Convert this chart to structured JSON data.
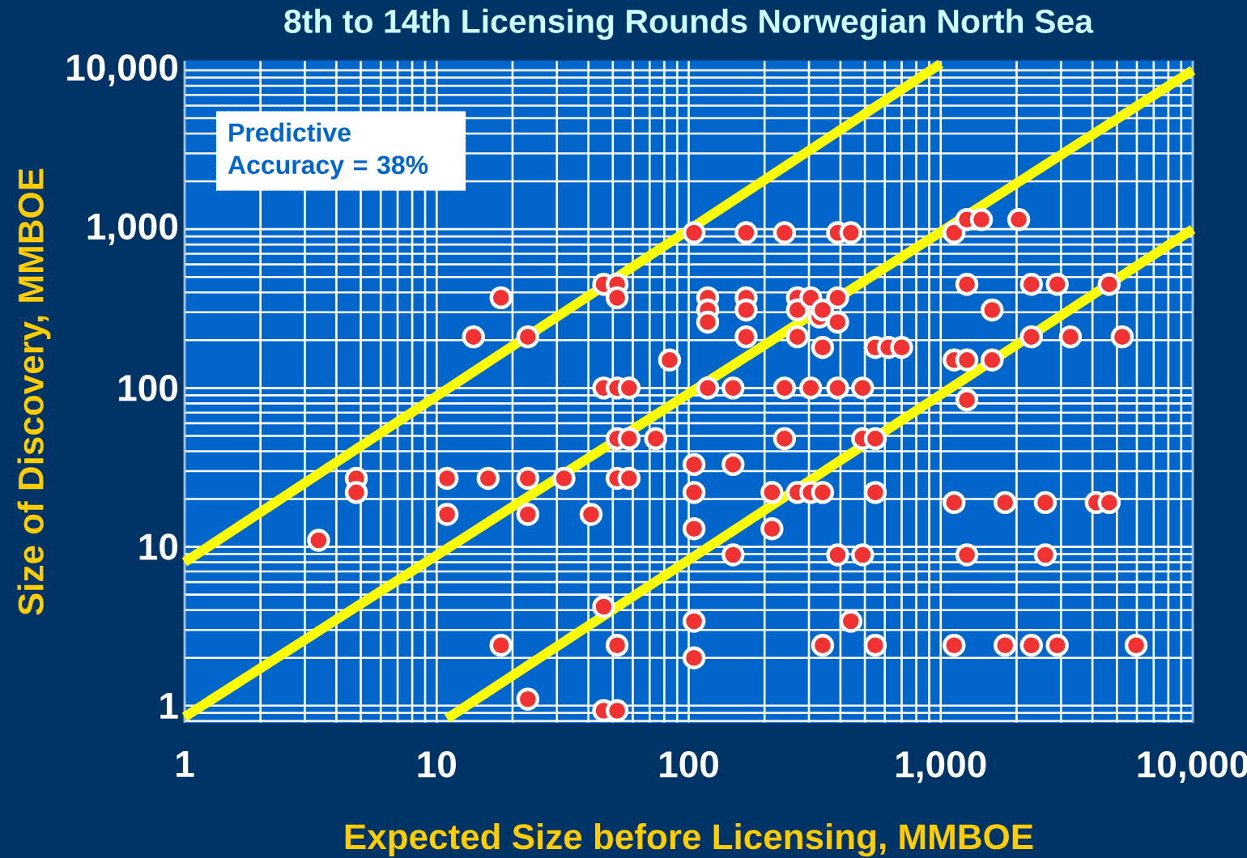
{
  "chart_data": {
    "type": "scatter",
    "title": "8th to 14th Licensing Rounds Norwegian North Sea",
    "xlabel": "Expected Size before Licensing, MMBOE",
    "ylabel": "Size of Discovery, MMBOE",
    "log": "xy",
    "grid": true,
    "xlim": [
      1,
      10000
    ],
    "ylim": [
      0.78,
      11500
    ],
    "xticks": [
      1,
      10,
      100,
      {
        "value": 1000,
        "label": "1,000"
      },
      {
        "value": 10000,
        "label": "10,000"
      }
    ],
    "yticks": [
      1,
      10,
      100,
      {
        "value": 1000,
        "label": "1,000"
      },
      {
        "value": 10000,
        "label": "10,000"
      }
    ],
    "annotations": [
      "Predictive Accuracy = 38%"
    ],
    "series": [
      {
        "color": "#f03232",
        "marker": "circle",
        "x": [
          3.4,
          4.8,
          4.8,
          11,
          11,
          14,
          16,
          18,
          18,
          23,
          23,
          23,
          23,
          32,
          41,
          46,
          46,
          46,
          46,
          52,
          52,
          52,
          52,
          52,
          52,
          52,
          58,
          58,
          58,
          74,
          84,
          105,
          105,
          105,
          105,
          105,
          105,
          119,
          119,
          119,
          119,
          150,
          150,
          150,
          169,
          169,
          169,
          169,
          214,
          214,
          240,
          240,
          240,
          270,
          270,
          270,
          270,
          305,
          305,
          305,
          330,
          340,
          340,
          340,
          340,
          390,
          390,
          390,
          390,
          390,
          440,
          440,
          490,
          490,
          490,
          550,
          550,
          550,
          550,
          620,
          700,
          1130,
          1130,
          1130,
          1130,
          1270,
          1270,
          1270,
          1270,
          1270,
          1450,
          1600,
          1600,
          1800,
          1800,
          2040,
          2290,
          2290,
          2290,
          2600,
          2600,
          2900,
          2900,
          3270,
          4140,
          4660,
          4660,
          5250,
          5960
        ],
        "values": [
          11,
          27,
          22,
          27,
          16,
          210,
          27,
          370,
          2.4,
          210,
          27,
          16,
          1.1,
          27,
          16,
          450,
          100,
          4.2,
          0.93,
          450,
          370,
          100,
          48,
          27,
          2.4,
          0.93,
          100,
          48,
          27,
          48,
          150,
          950,
          33,
          22,
          13,
          3.4,
          2,
          370,
          310,
          260,
          100,
          100,
          33,
          8.9,
          950,
          370,
          310,
          210,
          22,
          13,
          950,
          100,
          48,
          370,
          310,
          210,
          22,
          370,
          100,
          22,
          280,
          310,
          180,
          22,
          2.4,
          950,
          370,
          260,
          100,
          8.9,
          950,
          3.4,
          100,
          48,
          8.9,
          180,
          48,
          22,
          2.4,
          180,
          180,
          950,
          150,
          19,
          2.4,
          1150,
          450,
          150,
          84,
          8.9,
          1150,
          310,
          150,
          19,
          2.4,
          1150,
          450,
          210,
          2.4,
          19,
          8.9,
          450,
          2.4,
          210,
          19,
          450,
          19,
          210,
          2.4
        ]
      },
      {
        "type": "line",
        "color": "#ffff00",
        "marker": "none",
        "x": [
          1,
          1000
        ],
        "values": [
          8,
          11000
        ]
      },
      {
        "type": "line",
        "color": "#ffff00",
        "marker": "none",
        "x": [
          1,
          10000
        ],
        "values": [
          0.85,
          10000
        ]
      },
      {
        "type": "line",
        "color": "#ffff00",
        "marker": "none",
        "x": [
          11,
          10000
        ],
        "values": [
          0.83,
          1000
        ]
      }
    ]
  }
}
